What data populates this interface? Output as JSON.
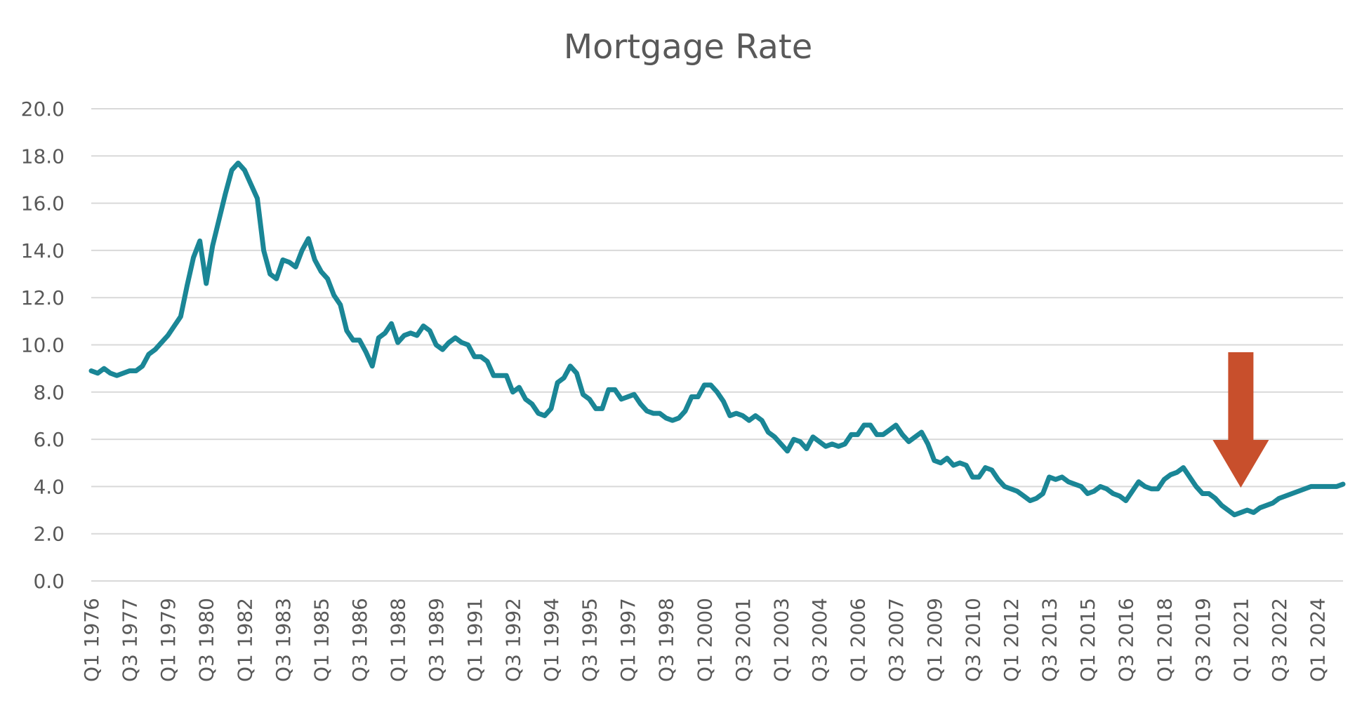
{
  "chart_data": {
    "type": "line",
    "title": "Mortgage Rate",
    "xlabel": "",
    "ylabel": "",
    "ylim": [
      0,
      20
    ],
    "y_ticks": [
      "0.0",
      "2.0",
      "4.0",
      "6.0",
      "8.0",
      "10.0",
      "12.0",
      "14.0",
      "16.0",
      "18.0",
      "20.0"
    ],
    "x_tick_labels": [
      "Q1 1976",
      "Q3 1977",
      "Q1 1979",
      "Q3 1980",
      "Q1 1982",
      "Q3 1983",
      "Q1 1985",
      "Q3 1986",
      "Q1 1988",
      "Q3 1989",
      "Q1 1991",
      "Q3 1992",
      "Q1 1994",
      "Q3 1995",
      "Q1 1997",
      "Q3 1998",
      "Q1 2000",
      "Q3 2001",
      "Q1 2003",
      "Q3 2004",
      "Q1 2006",
      "Q3 2007",
      "Q1 2009",
      "Q3 2010",
      "Q1 2012",
      "Q3 2013",
      "Q1 2015",
      "Q3 2016",
      "Q1 2018",
      "Q3 2019",
      "Q1 2021",
      "Q3 2022",
      "Q1 2024"
    ],
    "x_start": "Q1 1976",
    "x_end": "Q4 2024",
    "grid": true,
    "legend": "none",
    "series_color": "#1a8696",
    "annotation": {
      "type": "down-arrow",
      "at": "Q1 2021",
      "color": "#c84f2c"
    },
    "series": [
      {
        "values": [
          8.9,
          8.8,
          9.0,
          8.8,
          8.7,
          8.8,
          8.9,
          8.9,
          9.1,
          9.6,
          9.8,
          10.1,
          10.4,
          10.8,
          11.2,
          12.5,
          13.7,
          14.4,
          12.6,
          14.2,
          15.3,
          16.4,
          17.4,
          17.7,
          17.4,
          16.8,
          16.2,
          14.0,
          13.0,
          12.8,
          13.6,
          13.5,
          13.3,
          14.0,
          14.5,
          13.6,
          13.1,
          12.8,
          12.1,
          11.7,
          10.6,
          10.2,
          10.2,
          9.7,
          9.1,
          10.3,
          10.5,
          10.9,
          10.1,
          10.4,
          10.5,
          10.4,
          10.8,
          10.6,
          10.0,
          9.8,
          10.1,
          10.3,
          10.1,
          10.0,
          9.5,
          9.5,
          9.3,
          8.7,
          8.7,
          8.7,
          8.0,
          8.2,
          7.7,
          7.5,
          7.1,
          7.0,
          7.3,
          8.4,
          8.6,
          9.1,
          8.8,
          7.9,
          7.7,
          7.3,
          7.3,
          8.1,
          8.1,
          7.7,
          7.8,
          7.9,
          7.5,
          7.2,
          7.1,
          7.1,
          6.9,
          6.8,
          6.9,
          7.2,
          7.8,
          7.8,
          8.3,
          8.3,
          8.0,
          7.6,
          7.0,
          7.1,
          7.0,
          6.8,
          7.0,
          6.8,
          6.3,
          6.1,
          5.8,
          5.5,
          6.0,
          5.9,
          5.6,
          6.1,
          5.9,
          5.7,
          5.8,
          5.7,
          5.8,
          6.2,
          6.2,
          6.6,
          6.6,
          6.2,
          6.2,
          6.4,
          6.6,
          6.2,
          5.9,
          6.1,
          6.3,
          5.8,
          5.1,
          5.0,
          5.2,
          4.9,
          5.0,
          4.9,
          4.4,
          4.4,
          4.8,
          4.7,
          4.3,
          4.0,
          3.9,
          3.8,
          3.6,
          3.4,
          3.5,
          3.7,
          4.4,
          4.3,
          4.4,
          4.2,
          4.1,
          4.0,
          3.7,
          3.8,
          4.0,
          3.9,
          3.7,
          3.6,
          3.4,
          3.8,
          4.2,
          4.0,
          3.9,
          3.9,
          4.3,
          4.5,
          4.6,
          4.8,
          4.4,
          4.0,
          3.7,
          3.7,
          3.5,
          3.2,
          3.0,
          2.8,
          2.9,
          3.0,
          2.9,
          3.1,
          3.2,
          3.3,
          3.5,
          3.6,
          3.7,
          3.8,
          3.9,
          4.0,
          4.0,
          4.0,
          4.0,
          4.0,
          4.1
        ]
      }
    ]
  }
}
